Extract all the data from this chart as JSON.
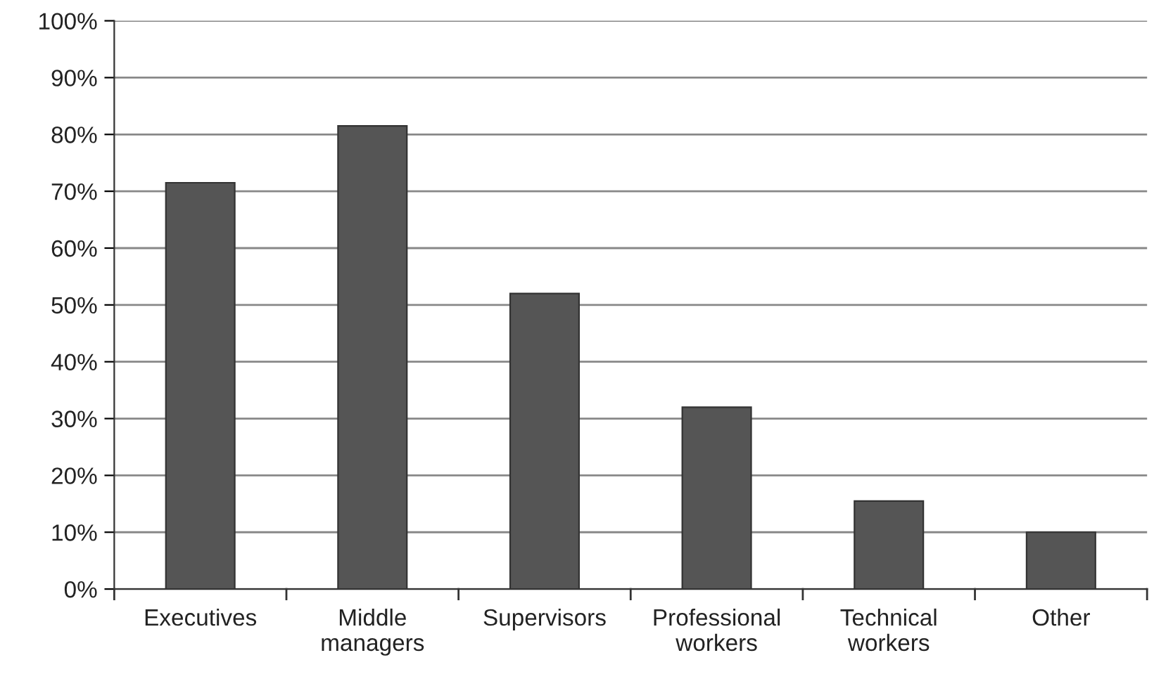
{
  "chart_data": {
    "type": "bar",
    "categories": [
      "Executives",
      "Middle\nmanagers",
      "Supervisors",
      "Professional\nworkers",
      "Technical\nworkers",
      "Other"
    ],
    "values": [
      71.5,
      81.5,
      52,
      32,
      15.5,
      10
    ],
    "color": "#555555",
    "ylim": [
      0,
      100
    ],
    "yticks": [
      {
        "value": 0,
        "label": "0%"
      },
      {
        "value": 10,
        "label": "10%"
      },
      {
        "value": 20,
        "label": "20%"
      },
      {
        "value": 30,
        "label": "30%"
      },
      {
        "value": 40,
        "label": "40%"
      },
      {
        "value": 50,
        "label": "50%"
      },
      {
        "value": 60,
        "label": "60%"
      },
      {
        "value": 70,
        "label": "70%"
      },
      {
        "value": 80,
        "label": "80%"
      },
      {
        "value": 90,
        "label": "90%"
      },
      {
        "value": 100,
        "label": "100%"
      }
    ],
    "grid": "y"
  }
}
